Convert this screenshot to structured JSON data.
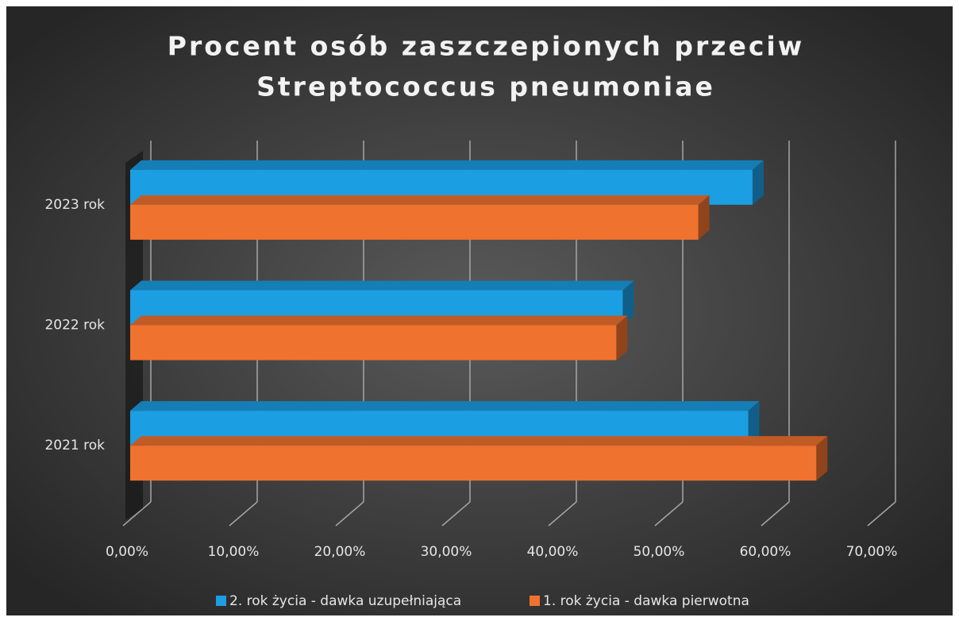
{
  "chart_data": {
    "type": "bar3d_horizontal",
    "title": [
      "Procent osób zaszczepionych   przeciw",
      "Streptococcus pneumoniae"
    ],
    "categories": [
      "2021 rok",
      "2022 rok",
      "2023 rok"
    ],
    "series": [
      {
        "name": "2. rok życia - dawka uzupełniająca",
        "color": "#1c9ee3",
        "values": [
          58.1,
          46.3,
          58.5
        ]
      },
      {
        "name": "1. rok życia - dawka pierwotna",
        "color": "#f0722f",
        "values": [
          64.5,
          45.7,
          53.4
        ]
      }
    ],
    "xlim": [
      0,
      70
    ],
    "xticks": [
      {
        "value": 0,
        "label": "0,00%"
      },
      {
        "value": 10,
        "label": "10,00%"
      },
      {
        "value": 20,
        "label": "20,00%"
      },
      {
        "value": 30,
        "label": "30,00%"
      },
      {
        "value": 40,
        "label": "40,00%"
      },
      {
        "value": 50,
        "label": "50,00%"
      },
      {
        "value": 60,
        "label": "60,00%"
      },
      {
        "value": 70,
        "label": "70,00%"
      }
    ],
    "grid": true,
    "legend": "bottom"
  }
}
